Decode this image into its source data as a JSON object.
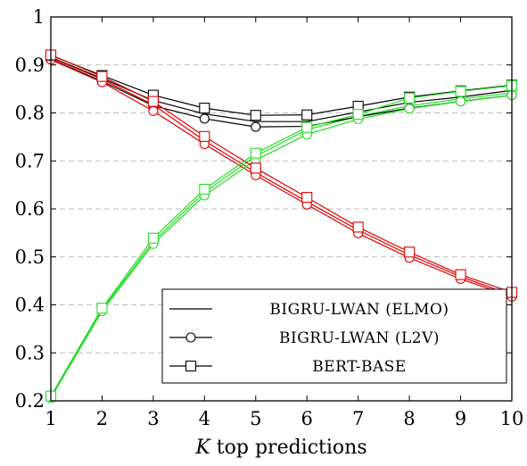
{
  "chart_data": {
    "type": "line",
    "x": [
      1,
      2,
      3,
      4,
      5,
      6,
      7,
      8,
      9,
      10
    ],
    "xlim": [
      1,
      10
    ],
    "ylim": [
      0.2,
      1.0
    ],
    "xticks": [
      "1",
      "2",
      "3",
      "4",
      "5",
      "6",
      "7",
      "8",
      "9",
      "10"
    ],
    "yticks": [
      "0.2",
      "0.3",
      "0.4",
      "0.5",
      "0.6",
      "0.7",
      "0.8",
      "0.9",
      "1"
    ],
    "xlabel_italic": "K",
    "xlabel_rest": " top predictions",
    "grid": "horizontal-dashed",
    "legend_position": "bottom-right",
    "legend": [
      {
        "label": "BIGRU-LWAN (ELMO)",
        "marker": "none"
      },
      {
        "label": "BIGRU-LWAN (L2V)",
        "marker": "circle"
      },
      {
        "label": "BERT-BASE",
        "marker": "square"
      }
    ],
    "colors": {
      "black": "#000000",
      "red": "#e00000",
      "green": "#22dd22",
      "grid": "#bbbbbb"
    },
    "series": [
      {
        "model": "BIGRU-LWAN (ELMO)",
        "marker": "none",
        "color": "black",
        "values": [
          0.916,
          0.872,
          0.826,
          0.798,
          0.782,
          0.782,
          0.802,
          0.822,
          0.833,
          0.847
        ]
      },
      {
        "model": "BIGRU-LWAN (L2V)",
        "marker": "circle",
        "color": "black",
        "values": [
          0.912,
          0.866,
          0.815,
          0.788,
          0.771,
          0.772,
          0.792,
          0.81,
          0.824,
          0.837
        ]
      },
      {
        "model": "BERT-BASE",
        "marker": "square",
        "color": "black",
        "values": [
          0.92,
          0.878,
          0.837,
          0.81,
          0.795,
          0.796,
          0.814,
          0.833,
          0.846,
          0.858
        ]
      },
      {
        "model": "BIGRU-LWAN (ELMO)",
        "marker": "none",
        "color": "red",
        "values": [
          0.915,
          0.87,
          0.817,
          0.742,
          0.676,
          0.615,
          0.556,
          0.504,
          0.459,
          0.42
        ]
      },
      {
        "model": "BIGRU-LWAN (L2V)",
        "marker": "circle",
        "color": "red",
        "values": [
          0.911,
          0.864,
          0.804,
          0.735,
          0.67,
          0.609,
          0.549,
          0.498,
          0.454,
          0.417
        ]
      },
      {
        "model": "BERT-BASE",
        "marker": "square",
        "color": "red",
        "values": [
          0.921,
          0.876,
          0.824,
          0.751,
          0.685,
          0.624,
          0.562,
          0.51,
          0.463,
          0.426
        ]
      },
      {
        "model": "BIGRU-LWAN (ELMO)",
        "marker": "none",
        "color": "green",
        "values": [
          0.208,
          0.39,
          0.532,
          0.635,
          0.71,
          0.765,
          0.793,
          0.815,
          0.829,
          0.842
        ]
      },
      {
        "model": "BIGRU-LWAN (L2V)",
        "marker": "circle",
        "color": "green",
        "values": [
          0.206,
          0.387,
          0.527,
          0.628,
          0.702,
          0.755,
          0.787,
          0.809,
          0.824,
          0.837
        ]
      },
      {
        "model": "BERT-BASE",
        "marker": "square",
        "color": "green",
        "values": [
          0.21,
          0.393,
          0.539,
          0.641,
          0.716,
          0.77,
          0.797,
          0.831,
          0.845,
          0.857
        ]
      }
    ]
  }
}
